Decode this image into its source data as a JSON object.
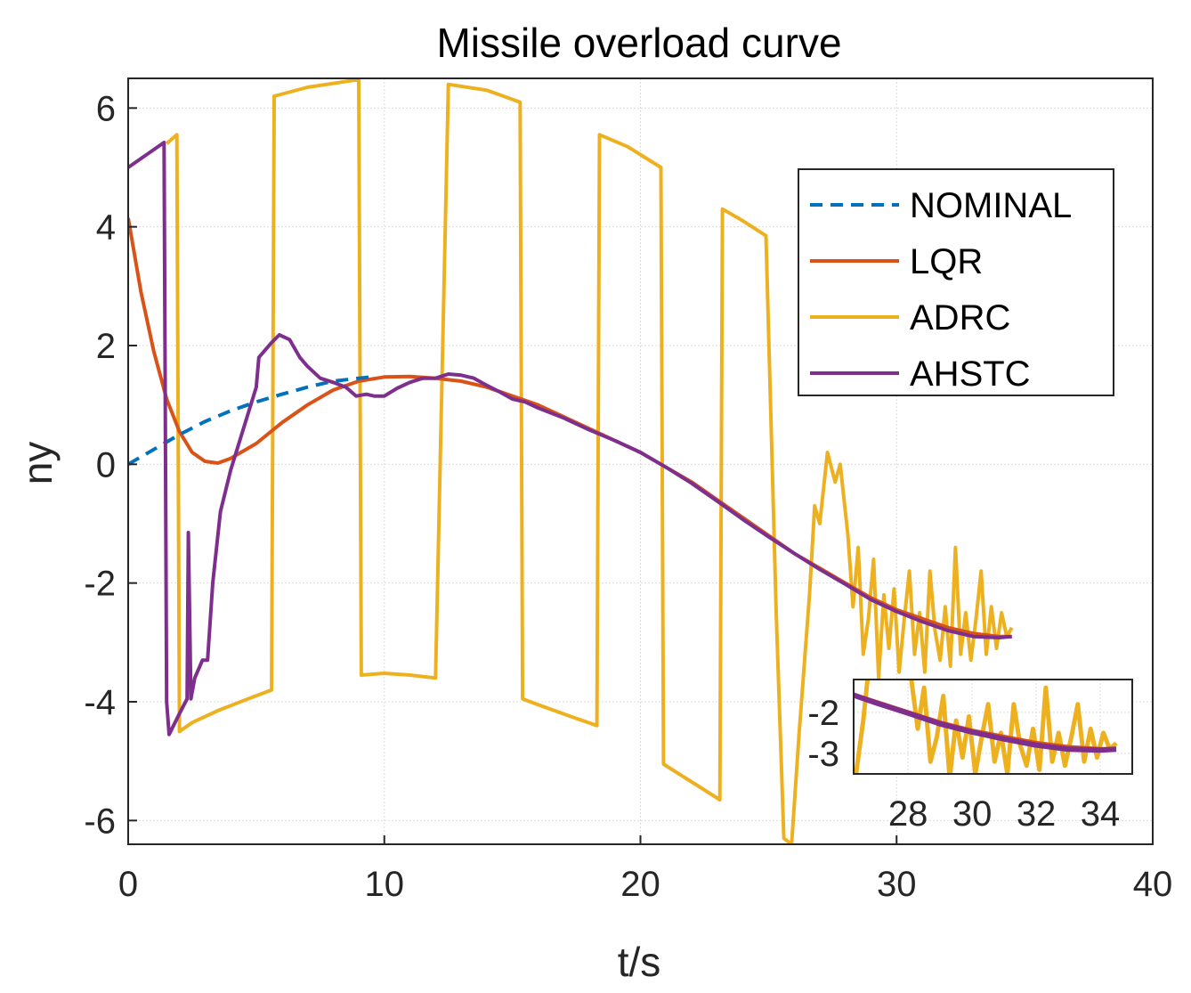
{
  "chart_data": {
    "type": "line",
    "title": "Missile overload curve",
    "xlabel": "t/s",
    "ylabel": "ny",
    "xlim": [
      0,
      40
    ],
    "ylim": [
      -6.4,
      6.5
    ],
    "xticks": [
      0,
      10,
      20,
      30,
      40
    ],
    "yticks": [
      -6,
      -4,
      -2,
      0,
      2,
      4,
      6
    ],
    "grid": true,
    "legend_position": "top-right",
    "series": [
      {
        "name": "NOMINAL",
        "color": "#0072BD",
        "style": "dashed",
        "points": [
          [
            0,
            0
          ],
          [
            1,
            0.25
          ],
          [
            2,
            0.5
          ],
          [
            3,
            0.72
          ],
          [
            4,
            0.9
          ],
          [
            5,
            1.05
          ],
          [
            6,
            1.18
          ],
          [
            7,
            1.3
          ],
          [
            8,
            1.4
          ],
          [
            9,
            1.45
          ],
          [
            9.5,
            1.47
          ]
        ]
      },
      {
        "name": "LQR",
        "color": "#D95319",
        "style": "solid",
        "points": [
          [
            0,
            4.15
          ],
          [
            0.5,
            2.9
          ],
          [
            1,
            1.9
          ],
          [
            1.5,
            1.1
          ],
          [
            2,
            0.55
          ],
          [
            2.5,
            0.2
          ],
          [
            3,
            0.05
          ],
          [
            3.5,
            0.02
          ],
          [
            4,
            0.1
          ],
          [
            5,
            0.35
          ],
          [
            6,
            0.7
          ],
          [
            7,
            1.0
          ],
          [
            8,
            1.25
          ],
          [
            9,
            1.4
          ],
          [
            10,
            1.47
          ],
          [
            11,
            1.48
          ],
          [
            12,
            1.45
          ],
          [
            13,
            1.4
          ],
          [
            14,
            1.3
          ],
          [
            15,
            1.15
          ],
          [
            16,
            1.0
          ],
          [
            17,
            0.8
          ],
          [
            18,
            0.6
          ],
          [
            19,
            0.4
          ],
          [
            20,
            0.2
          ],
          [
            21,
            -0.05
          ],
          [
            22,
            -0.3
          ],
          [
            23,
            -0.6
          ],
          [
            24,
            -0.9
          ],
          [
            25,
            -1.2
          ],
          [
            26,
            -1.5
          ],
          [
            27,
            -1.75
          ],
          [
            28,
            -2.0
          ],
          [
            29,
            -2.25
          ],
          [
            30,
            -2.45
          ],
          [
            31,
            -2.6
          ],
          [
            32,
            -2.75
          ],
          [
            33,
            -2.85
          ],
          [
            34,
            -2.9
          ],
          [
            34.5,
            -2.9
          ]
        ]
      },
      {
        "name": "ADRC",
        "color": "#EDB120",
        "style": "solid",
        "points": [
          [
            1.5,
            5.4
          ],
          [
            1.9,
            5.55
          ],
          [
            2.0,
            -4.5
          ],
          [
            2.5,
            -4.35
          ],
          [
            3.5,
            -4.15
          ],
          [
            4.5,
            -3.98
          ],
          [
            5.6,
            -3.8
          ],
          [
            5.7,
            6.2
          ],
          [
            7,
            6.35
          ],
          [
            9,
            6.48
          ],
          [
            9.1,
            -3.55
          ],
          [
            10,
            -3.52
          ],
          [
            11,
            -3.55
          ],
          [
            12,
            -3.6
          ],
          [
            12.5,
            6.4
          ],
          [
            14,
            6.3
          ],
          [
            15.3,
            6.1
          ],
          [
            15.4,
            -3.95
          ],
          [
            16,
            -4.05
          ],
          [
            17.3,
            -4.25
          ],
          [
            18.3,
            -4.4
          ],
          [
            18.4,
            5.55
          ],
          [
            19.5,
            5.35
          ],
          [
            20.8,
            5.0
          ],
          [
            20.9,
            -5.05
          ],
          [
            22,
            -5.35
          ],
          [
            23.1,
            -5.65
          ],
          [
            23.2,
            4.3
          ],
          [
            24,
            4.1
          ],
          [
            24.9,
            3.85
          ],
          [
            25.3,
            -2.5
          ],
          [
            25.6,
            -6.3
          ],
          [
            25.9,
            -6.4
          ],
          [
            26.2,
            -4.5
          ],
          [
            26.6,
            -2.2
          ],
          [
            26.8,
            -0.7
          ],
          [
            27.0,
            -1.0
          ],
          [
            27.3,
            0.2
          ],
          [
            27.6,
            -0.3
          ],
          [
            27.8,
            0.0
          ],
          [
            28.1,
            -1.2
          ],
          [
            28.3,
            -2.4
          ],
          [
            28.5,
            -1.4
          ],
          [
            28.7,
            -3.2
          ],
          [
            28.9,
            -2.6
          ],
          [
            29.1,
            -1.6
          ],
          [
            29.3,
            -3.6
          ],
          [
            29.5,
            -2.2
          ],
          [
            29.7,
            -3.1
          ],
          [
            29.9,
            -2.1
          ],
          [
            30.1,
            -3.5
          ],
          [
            30.3,
            -2.6
          ],
          [
            30.5,
            -1.8
          ],
          [
            30.7,
            -3.2
          ],
          [
            30.9,
            -2.5
          ],
          [
            31.1,
            -3.5
          ],
          [
            31.3,
            -1.8
          ],
          [
            31.5,
            -2.8
          ],
          [
            31.7,
            -3.3
          ],
          [
            31.9,
            -2.4
          ],
          [
            32.1,
            -3.4
          ],
          [
            32.3,
            -1.4
          ],
          [
            32.5,
            -3.2
          ],
          [
            32.7,
            -2.5
          ],
          [
            32.9,
            -3.3
          ],
          [
            33.1,
            -2.6
          ],
          [
            33.3,
            -1.8
          ],
          [
            33.5,
            -3.2
          ],
          [
            33.7,
            -2.4
          ],
          [
            33.9,
            -3.1
          ],
          [
            34.1,
            -2.5
          ],
          [
            34.3,
            -2.9
          ],
          [
            34.5,
            -2.75
          ]
        ]
      },
      {
        "name": "AHSTC",
        "color": "#7E2F8E",
        "style": "solid",
        "points": [
          [
            0,
            5.0
          ],
          [
            0.5,
            5.15
          ],
          [
            1.0,
            5.3
          ],
          [
            1.4,
            5.42
          ],
          [
            1.5,
            -4.0
          ],
          [
            1.6,
            -4.55
          ],
          [
            2.0,
            -4.2
          ],
          [
            2.3,
            -3.95
          ],
          [
            2.35,
            -1.15
          ],
          [
            2.45,
            -3.95
          ],
          [
            2.6,
            -3.6
          ],
          [
            2.9,
            -3.3
          ],
          [
            3.1,
            -3.3
          ],
          [
            3.3,
            -2.0
          ],
          [
            3.6,
            -0.8
          ],
          [
            4.0,
            -0.1
          ],
          [
            4.5,
            0.6
          ],
          [
            5.0,
            1.3
          ],
          [
            5.1,
            1.8
          ],
          [
            5.3,
            1.9
          ],
          [
            5.6,
            2.05
          ],
          [
            5.9,
            2.18
          ],
          [
            6.3,
            2.1
          ],
          [
            6.7,
            1.8
          ],
          [
            7.0,
            1.65
          ],
          [
            7.5,
            1.45
          ],
          [
            8.0,
            1.38
          ],
          [
            8.5,
            1.3
          ],
          [
            8.9,
            1.15
          ],
          [
            9.3,
            1.18
          ],
          [
            9.6,
            1.15
          ],
          [
            10.0,
            1.15
          ],
          [
            10.5,
            1.28
          ],
          [
            11.0,
            1.38
          ],
          [
            11.5,
            1.45
          ],
          [
            12.0,
            1.45
          ],
          [
            12.5,
            1.52
          ],
          [
            13.0,
            1.5
          ],
          [
            13.5,
            1.45
          ],
          [
            14.0,
            1.33
          ],
          [
            14.5,
            1.22
          ],
          [
            15.0,
            1.1
          ],
          [
            15.5,
            1.05
          ],
          [
            16.0,
            0.95
          ],
          [
            17.0,
            0.78
          ],
          [
            18.0,
            0.58
          ],
          [
            19.0,
            0.4
          ],
          [
            20.0,
            0.2
          ],
          [
            21.0,
            -0.05
          ],
          [
            22.0,
            -0.32
          ],
          [
            23.0,
            -0.62
          ],
          [
            24.0,
            -0.93
          ],
          [
            25.0,
            -1.22
          ],
          [
            26.0,
            -1.5
          ],
          [
            27.0,
            -1.77
          ],
          [
            28.0,
            -2.02
          ],
          [
            29.0,
            -2.28
          ],
          [
            30.0,
            -2.48
          ],
          [
            31.0,
            -2.65
          ],
          [
            32.0,
            -2.8
          ],
          [
            33.0,
            -2.9
          ],
          [
            34.0,
            -2.92
          ],
          [
            34.5,
            -2.9
          ]
        ]
      }
    ],
    "inset": {
      "xlim": [
        26.3,
        35
      ],
      "ylim": [
        -3.5,
        -1.2
      ],
      "xticks": [
        28,
        30,
        32,
        34
      ],
      "yticks": [
        -2,
        -3
      ]
    }
  }
}
